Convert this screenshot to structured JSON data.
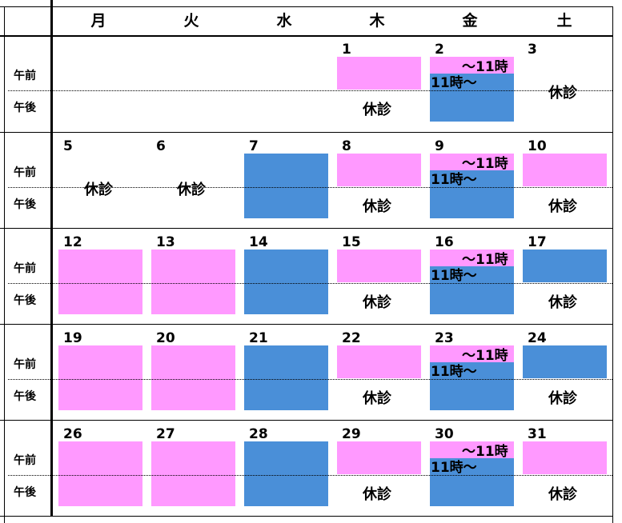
{
  "colors": {
    "pink": "#ff99ff",
    "blue": "#4a8fd8"
  },
  "header": {
    "days": [
      "月",
      "火",
      "水",
      "木",
      "金",
      "土"
    ]
  },
  "periods": {
    "am": "午前",
    "pm": "午後"
  },
  "labels": {
    "closed": "休診",
    "until11": "～11時",
    "from11": "11時～"
  },
  "weeks": [
    [
      null,
      null,
      null,
      {
        "date": "1",
        "am": "pink",
        "pm": "closed"
      },
      {
        "date": "2",
        "am": "pink",
        "pm": "blue",
        "split": true
      },
      {
        "date": "3",
        "am": "closed",
        "pm": "closed",
        "merged_closed": true
      }
    ],
    [
      {
        "date": "5",
        "am": "closed",
        "pm": "closed",
        "merged_closed": true
      },
      {
        "date": "6",
        "am": "closed",
        "pm": "closed",
        "merged_closed": true
      },
      {
        "date": "7",
        "am": "blue",
        "pm": "blue"
      },
      {
        "date": "8",
        "am": "pink",
        "pm": "closed"
      },
      {
        "date": "9",
        "am": "pink",
        "pm": "blue",
        "split": true
      },
      {
        "date": "10",
        "am": "pink",
        "pm": "closed"
      }
    ],
    [
      {
        "date": "12",
        "am": "pink",
        "pm": "pink"
      },
      {
        "date": "13",
        "am": "pink",
        "pm": "pink"
      },
      {
        "date": "14",
        "am": "blue",
        "pm": "blue"
      },
      {
        "date": "15",
        "am": "pink",
        "pm": "closed"
      },
      {
        "date": "16",
        "am": "pink",
        "pm": "blue",
        "split": true
      },
      {
        "date": "17",
        "am": "blue",
        "pm": "closed"
      }
    ],
    [
      {
        "date": "19",
        "am": "pink",
        "pm": "pink"
      },
      {
        "date": "20",
        "am": "pink",
        "pm": "pink"
      },
      {
        "date": "21",
        "am": "blue",
        "pm": "blue"
      },
      {
        "date": "22",
        "am": "pink",
        "pm": "closed"
      },
      {
        "date": "23",
        "am": "pink",
        "pm": "blue",
        "split": true
      },
      {
        "date": "24",
        "am": "blue",
        "pm": "closed"
      }
    ],
    [
      {
        "date": "26",
        "am": "pink",
        "pm": "pink"
      },
      {
        "date": "27",
        "am": "pink",
        "pm": "pink"
      },
      {
        "date": "28",
        "am": "blue",
        "pm": "blue"
      },
      {
        "date": "29",
        "am": "pink",
        "pm": "closed"
      },
      {
        "date": "30",
        "am": "pink",
        "pm": "blue",
        "split": true
      },
      {
        "date": "31",
        "am": "pink",
        "pm": "closed"
      }
    ]
  ]
}
